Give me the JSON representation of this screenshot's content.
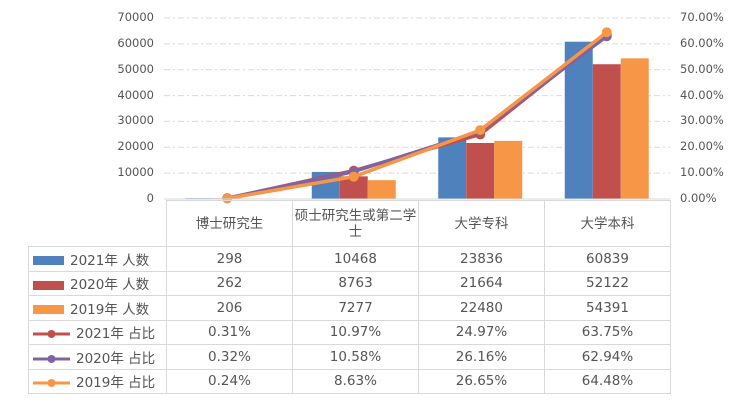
{
  "chart_data": {
    "type": "bar+line",
    "categories": [
      "博士研究生",
      "硕士研究生或第二学士",
      "大学专科",
      "大学本科"
    ],
    "bar_series": [
      {
        "name": "2021年 人数",
        "color": "#4F81BD",
        "values": [
          298,
          10468,
          23836,
          60839
        ]
      },
      {
        "name": "2020年 人数",
        "color": "#C0504D",
        "values": [
          262,
          8763,
          21664,
          52122
        ]
      },
      {
        "name": "2019年 人数",
        "color": "#F79646",
        "values": [
          206,
          7277,
          22480,
          54391
        ]
      }
    ],
    "line_series": [
      {
        "name": "2021年 占比",
        "color": "#C0504D",
        "values": [
          0.31,
          10.97,
          24.97,
          63.75
        ],
        "display": [
          "0.31%",
          "10.97%",
          "24.97%",
          "63.75%"
        ]
      },
      {
        "name": "2020年 占比",
        "color": "#8064A2",
        "values": [
          0.32,
          10.58,
          26.16,
          62.94
        ],
        "display": [
          "0.32%",
          "10.58%",
          "26.16%",
          "62.94%"
        ]
      },
      {
        "name": "2019年 占比",
        "color": "#F79646",
        "values": [
          0.24,
          8.63,
          26.65,
          64.48
        ],
        "display": [
          "0.24%",
          "8.63%",
          "26.65%",
          "64.48%"
        ]
      }
    ],
    "ylim": [
      0,
      70000
    ],
    "y2lim": [
      0,
      70
    ],
    "yticks": [
      "0",
      "10000",
      "20000",
      "30000",
      "40000",
      "50000",
      "60000",
      "70000"
    ],
    "y2ticks": [
      "0.00%",
      "10.00%",
      "20.00%",
      "30.00%",
      "40.00%",
      "50.00%",
      "60.00%",
      "70.00%"
    ],
    "grid": true,
    "legend_position": "data-table"
  },
  "table": {
    "headers": [
      "博士研究生",
      "硕士研究生或第二学士",
      "大学专科",
      "大学本科"
    ],
    "rows": [
      {
        "label": "2021年 人数",
        "cells": [
          "298",
          "10468",
          "23836",
          "60839"
        ]
      },
      {
        "label": "2020年 人数",
        "cells": [
          "262",
          "8763",
          "21664",
          "52122"
        ]
      },
      {
        "label": "2019年 人数",
        "cells": [
          "206",
          "7277",
          "22480",
          "54391"
        ]
      },
      {
        "label": "2021年 占比",
        "cells": [
          "0.31%",
          "10.97%",
          "24.97%",
          "63.75%"
        ]
      },
      {
        "label": "2020年 占比",
        "cells": [
          "0.32%",
          "10.58%",
          "26.16%",
          "62.94%"
        ]
      },
      {
        "label": "2019年 占比",
        "cells": [
          "0.24%",
          "8.63%",
          "26.65%",
          "64.48%"
        ]
      }
    ]
  }
}
